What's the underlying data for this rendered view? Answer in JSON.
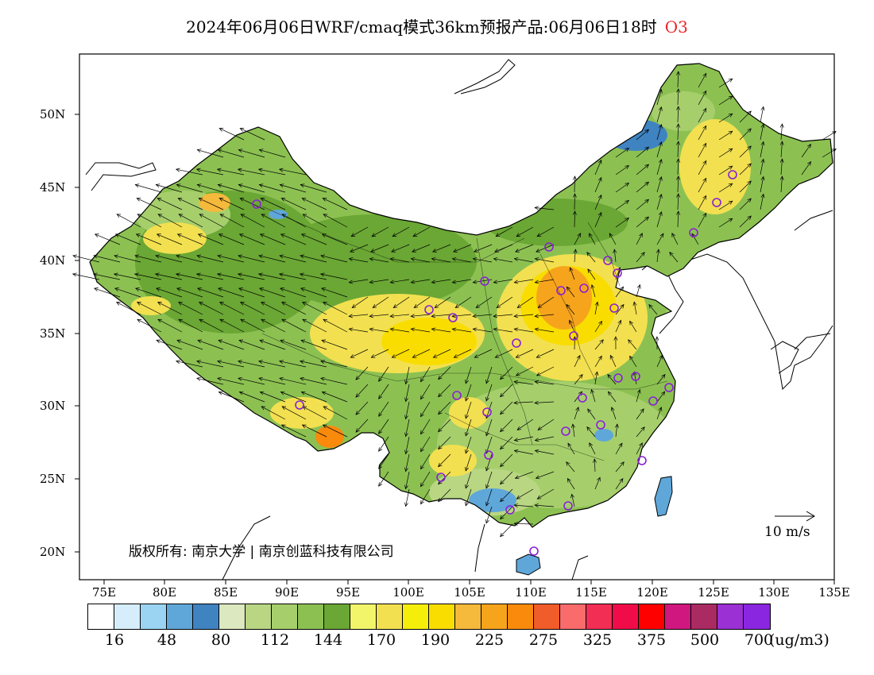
{
  "title": {
    "main": "2024年06月06日WRF/cmaq模式36km预报产品:06月06日18时",
    "pollutant": "O3",
    "pollutant_color": "#e8262a"
  },
  "map": {
    "lat_labels": [
      "50N",
      "45N",
      "40N",
      "35N",
      "30N",
      "25N",
      "20N"
    ],
    "lon_labels": [
      "75E",
      "80E",
      "85E",
      "90E",
      "95E",
      "100E",
      "105E",
      "110E",
      "115E",
      "120E",
      "125E",
      "130E",
      "135E"
    ],
    "copyright": "版权所有: 南京大学 | 南京创蓝科技有限公司",
    "vector_reference": "10 m/s",
    "site_marker_color": "#8a1fd6"
  },
  "colorbar": {
    "colors": [
      "#ffffff",
      "#d6eefb",
      "#9bd4f3",
      "#5fa7d9",
      "#3f83c1",
      "#dce8c0",
      "#b9d683",
      "#a6cf6c",
      "#8cc152",
      "#6aa734",
      "#f2f56a",
      "#f2e050",
      "#f5ee0a",
      "#f9dd00",
      "#f5b93b",
      "#f7a41d",
      "#f98a0b",
      "#f05c2a",
      "#fa6b6b",
      "#f22e55",
      "#f00c49",
      "#ff0000",
      "#d0177f",
      "#a92b62",
      "#9b30d5",
      "#8a26e0"
    ],
    "ticks": [
      "16",
      "48",
      "80",
      "112",
      "144",
      "170",
      "190",
      "225",
      "275",
      "325",
      "375",
      "500",
      "700"
    ],
    "unit": "(ug/m3)"
  }
}
